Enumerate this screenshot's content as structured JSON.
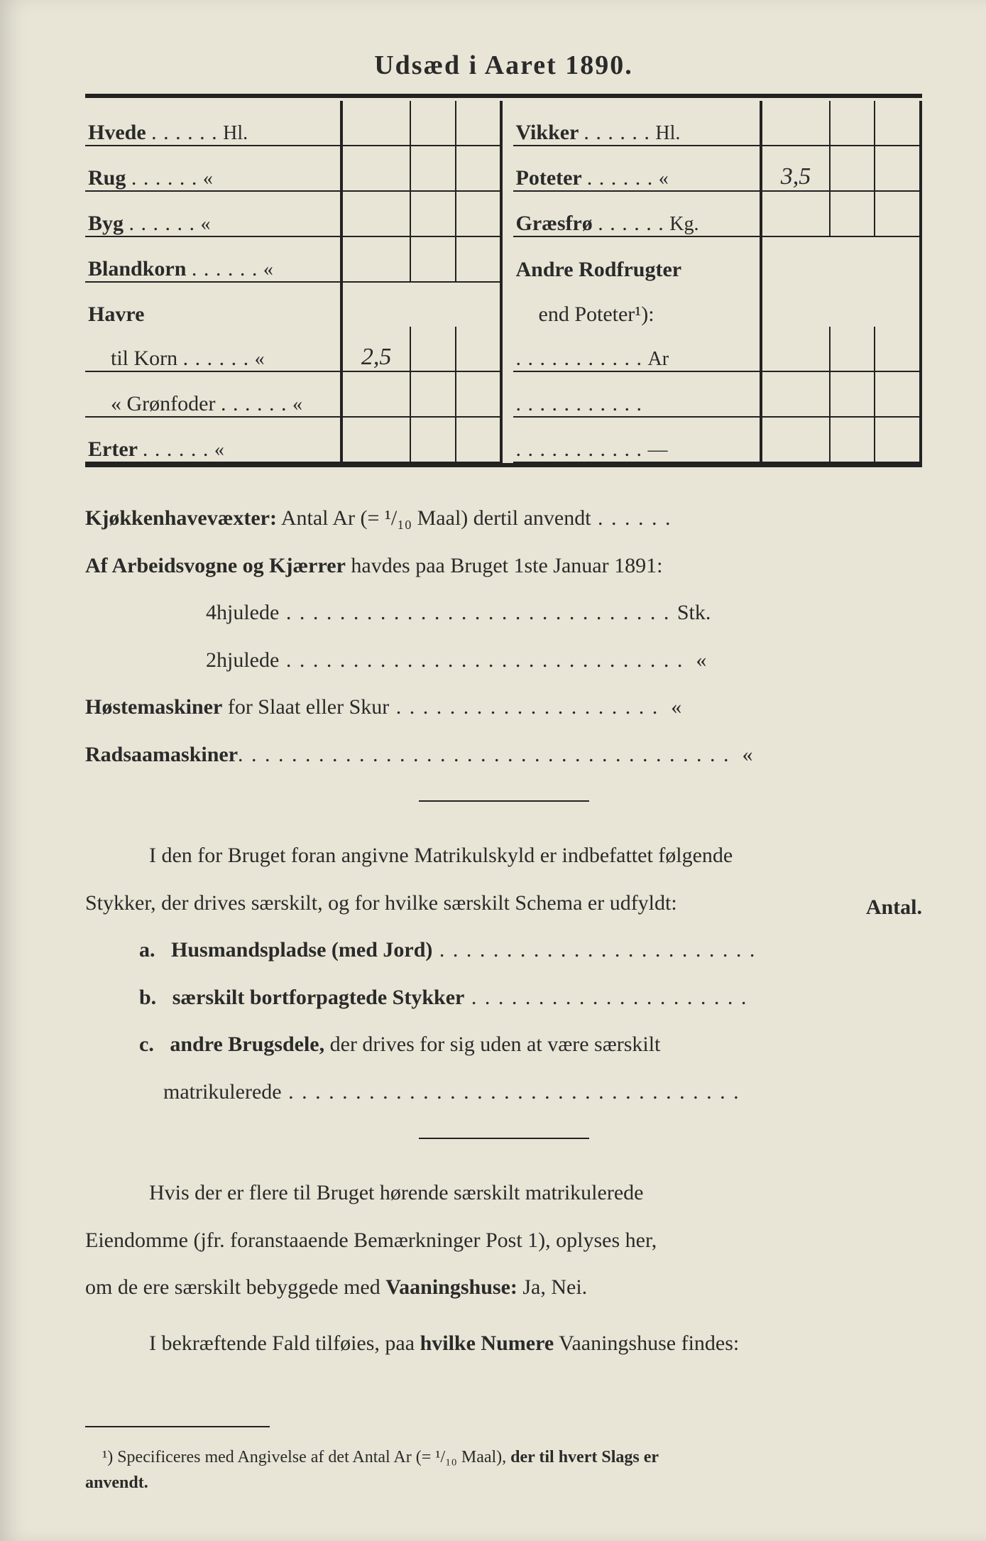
{
  "title": "Udsæd i Aaret 1890.",
  "table": {
    "left": [
      {
        "label": "Hvede",
        "unit": "Hl.",
        "value": ""
      },
      {
        "label": "Rug",
        "unit": "«",
        "value": ""
      },
      {
        "label": "Byg",
        "unit": "«",
        "value": ""
      },
      {
        "label": "Blandkorn",
        "unit": "«",
        "value": ""
      },
      {
        "label": "Havre",
        "unit": "",
        "value": "",
        "noUnitRow": true
      },
      {
        "label": "til Korn",
        "unit": "«",
        "value": "2,5",
        "indent": true
      },
      {
        "label": "«  Grønfoder",
        "unit": "«",
        "value": "",
        "indent": true
      },
      {
        "label": "Erter",
        "unit": "«",
        "value": ""
      }
    ],
    "right": [
      {
        "label": "Vikker",
        "unit": "Hl.",
        "value": ""
      },
      {
        "label": "Poteter",
        "unit": "«",
        "value": "3,5"
      },
      {
        "label": "Græsfrø",
        "unit": "Kg.",
        "value": ""
      },
      {
        "label": "Andre Rodfrugter",
        "unit": "",
        "value": "",
        "noUnitRow": true
      },
      {
        "label": "end Poteter¹):",
        "unit": "",
        "value": "",
        "indent": true,
        "noUnitRow": true
      },
      {
        "label": "",
        "unit": "Ar",
        "value": "",
        "dotsOnly": true
      },
      {
        "label": "",
        "unit": "",
        "value": "",
        "dotsOnly": true
      },
      {
        "label": "",
        "unit": "—",
        "value": "",
        "dotsOnly": true
      }
    ]
  },
  "body": {
    "kjokken_label": "Kjøkkenhavevæxter:",
    "kjokken_rest": " Antal Ar (= ¹/₁₀ Maal) dertil anvendt",
    "vogner_a": "Af Arbeidsvogne og Kjærrer",
    "vogner_b": " havdes paa Bruget 1ste Januar 1891:",
    "fourwheel": "4hjulede",
    "fourwheel_unit": "Stk.",
    "twowheel": "2hjulede",
    "twowheel_unit": "«",
    "hoste": "Høstemaskiner",
    "hoste_b": " for Slaat eller Skur",
    "hoste_unit": "«",
    "radsaa": "Radsaamaskiner",
    "radsaa_unit": "«",
    "para1_a": "I den for Bruget foran angivne Matrikulskyld er indbefattet følgende",
    "para1_b": "Stykker, der drives særskilt, og for hvilke særskilt Schema er udfyldt:",
    "antal": "Antal.",
    "item_a_key": "a.",
    "item_a": "Husmandspladse (med Jord)",
    "item_b_key": "b.",
    "item_b": "særskilt bortforpagtede Stykker",
    "item_c_key": "c.",
    "item_c1": "andre Brugsdele,",
    "item_c2": " der drives for sig uden at være særskilt",
    "item_c3": "matrikulerede",
    "para2_a": "Hvis der er flere til Bruget hørende særskilt matrikulerede",
    "para2_b": "Eiendomme (jfr. foranstaaende Bemærkninger Post 1), oplyses her,",
    "para2_c": "om de ere særskilt bebyggede med ",
    "para2_d": "Vaaningshuse:",
    "para2_e": " Ja, Nei.",
    "para3_a": "I bekræftende Fald tilføies, paa ",
    "para3_b": "hvilke Numere",
    "para3_c": " Vaaningshuse findes:"
  },
  "footnote": {
    "mark": "¹)",
    "text_a": " Specificeres med Angivelse af det Antal Ar (= ¹/₁₀ Maal), ",
    "text_b": "der til hvert Slags er",
    "text_c": "anvendt."
  },
  "colors": {
    "page_bg": "#e8e5d6",
    "outer_bg": "#d8d4c8",
    "ink": "#2a2a2a"
  }
}
